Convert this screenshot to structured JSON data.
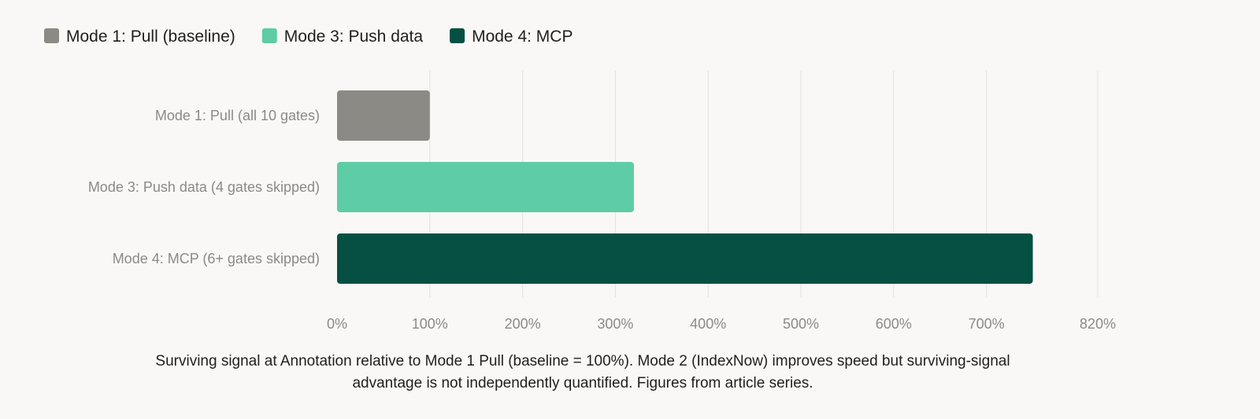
{
  "chart_data": {
    "type": "bar",
    "orientation": "horizontal",
    "categories": [
      "Mode 1: Pull (all 10 gates)",
      "Mode 3: Push data (4 gates skipped)",
      "Mode 4: MCP (6+ gates skipped)"
    ],
    "values": [
      100,
      320,
      750
    ],
    "unit": "%",
    "colors": [
      "#8b8a84",
      "#5ecca6",
      "#055043"
    ],
    "xlim": [
      0,
      820
    ],
    "x_ticks": [
      0,
      100,
      200,
      300,
      400,
      500,
      600,
      700,
      820
    ],
    "x_tick_labels": [
      "0%",
      "100%",
      "200%",
      "300%",
      "400%",
      "500%",
      "600%",
      "700%",
      "820%"
    ],
    "grid": true,
    "legend_position": "top-left",
    "legend": [
      {
        "label": "Mode 1: Pull (baseline)",
        "color": "#8b8a84"
      },
      {
        "label": "Mode 3: Push data",
        "color": "#5ecca6"
      },
      {
        "label": "Mode 4: MCP",
        "color": "#055043"
      }
    ],
    "caption_lines": [
      "Surviving signal at Annotation relative to Mode 1 Pull (baseline = 100%). Mode 2 (IndexNow) improves speed but surviving-signal",
      "advantage is not independently quantified. Figures from article series."
    ]
  }
}
